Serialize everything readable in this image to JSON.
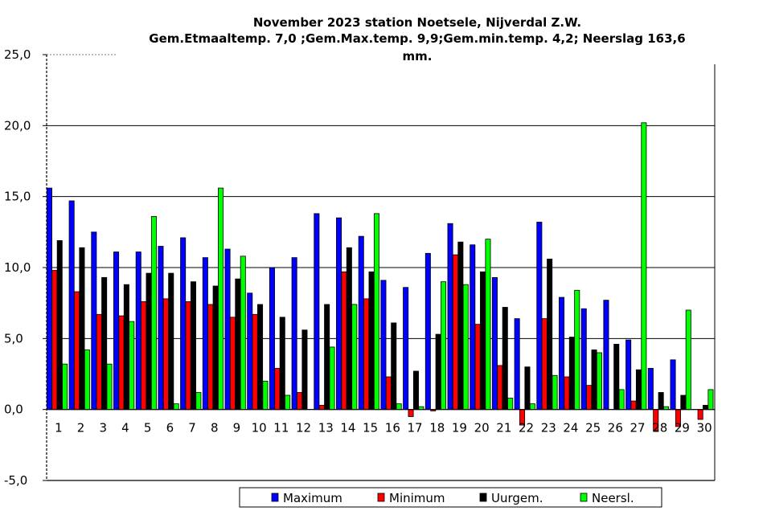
{
  "chart_data": {
    "type": "bar",
    "title_lines": [
      "November 2023 station Noetsele, Nijverdal Z.W.",
      "Gem.Etmaaltemp. 7,0 ;Gem.Max.temp. 9,9;Gem.min.temp. 4,2; Neerslag 163,6",
      "mm."
    ],
    "categories": [
      "1",
      "2",
      "3",
      "4",
      "5",
      "6",
      "7",
      "8",
      "9",
      "10",
      "11",
      "12",
      "13",
      "14",
      "15",
      "16",
      "17",
      "18",
      "19",
      "20",
      "21",
      "22",
      "23",
      "24",
      "25",
      "26",
      "27",
      "28",
      "29",
      "30"
    ],
    "y_ticks": [
      "25,0",
      "20,0",
      "15,0",
      "10,0",
      "5,0",
      "0,0",
      "-5,0"
    ],
    "ylim": [
      -5,
      25
    ],
    "grid": true,
    "legend_position": "bottom",
    "series": [
      {
        "name": "Maximum",
        "color": "#0000ff",
        "values": [
          15.6,
          14.7,
          12.5,
          11.1,
          11.1,
          11.5,
          12.1,
          10.7,
          11.3,
          8.2,
          10.0,
          10.7,
          13.8,
          13.5,
          12.2,
          9.1,
          8.6,
          11.0,
          13.1,
          11.6,
          9.3,
          6.4,
          13.2,
          7.9,
          7.1,
          7.7,
          4.9,
          2.9,
          3.5,
          0.0
        ]
      },
      {
        "name": "Minimum",
        "color": "#ff0000",
        "values": [
          9.8,
          8.3,
          6.7,
          6.6,
          7.6,
          7.8,
          7.6,
          7.4,
          6.5,
          6.7,
          2.9,
          1.2,
          0.3,
          9.7,
          7.8,
          2.3,
          -0.5,
          -0.1,
          10.9,
          6.0,
          3.1,
          -1.1,
          6.4,
          2.3,
          1.7,
          0.0,
          0.6,
          -1.5,
          -1.2,
          -0.7
        ]
      },
      {
        "name": "Uurgem.",
        "color": "#000000",
        "values": [
          11.9,
          11.4,
          9.3,
          8.8,
          9.6,
          9.6,
          9.0,
          8.7,
          9.2,
          7.4,
          6.5,
          5.6,
          7.4,
          11.4,
          9.7,
          6.1,
          2.7,
          5.3,
          11.8,
          9.7,
          7.2,
          3.0,
          10.6,
          5.1,
          4.2,
          4.6,
          2.8,
          1.2,
          1.0,
          0.3
        ]
      },
      {
        "name": "Neersl.",
        "color": "#00ff00",
        "values": [
          3.2,
          4.2,
          3.2,
          6.2,
          13.6,
          0.4,
          1.2,
          15.6,
          10.8,
          2.0,
          1.0,
          0.0,
          4.4,
          7.4,
          13.8,
          0.4,
          0.2,
          9.0,
          8.8,
          12.0,
          0.8,
          0.4,
          2.4,
          8.4,
          4.0,
          1.4,
          20.2,
          0.2,
          7.0,
          1.4
        ]
      }
    ]
  }
}
